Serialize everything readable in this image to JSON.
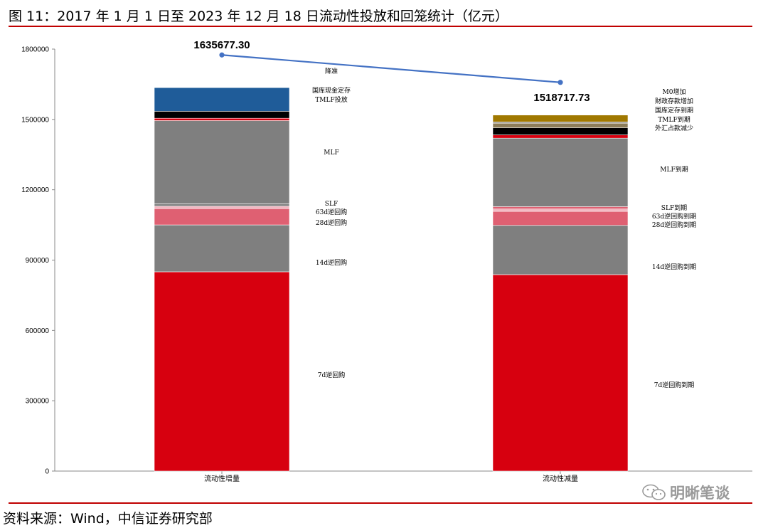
{
  "figure": {
    "title": "图 11：2017 年 1 月 1 日至 2023 年 12 月 18 日流动性投放和回笼统计（亿元）",
    "source": "资料来源：Wind，中信证券研究部",
    "watermark": "明晰笔谈"
  },
  "colors": {
    "rule": "#c00000",
    "red": "#d7000f",
    "gray": "#7f7f7f",
    "pink": "#df6072",
    "light_pink": "#f2b6c0",
    "black": "#000000",
    "blue": "#1f5c99",
    "gold": "#a07800",
    "olive": "#8c7d5a",
    "line": "#4472c4"
  },
  "chart_data": {
    "type": "bar",
    "stacked": true,
    "ylim": [
      0,
      1800000
    ],
    "yticks": [
      0,
      300000,
      600000,
      900000,
      1200000,
      1500000,
      1800000
    ],
    "ytick_labels": [
      "0",
      "300000",
      "600000",
      "900000",
      "1200000",
      "1500000",
      "1800000"
    ],
    "categories": [
      "流动性增量",
      "流动性减量"
    ],
    "grid": false,
    "bars": [
      {
        "category": "流动性增量",
        "total": 1635677.3,
        "total_label": "1635677.30",
        "segments": [
          {
            "label": "7d逆回购",
            "value": 850000,
            "color": "red"
          },
          {
            "label": "14d逆回购",
            "value": 200000,
            "color": "gray"
          },
          {
            "label": "28d逆回购",
            "value": 70000,
            "color": "pink"
          },
          {
            "label": "63d逆回购",
            "value": 10000,
            "color": "light_pink"
          },
          {
            "label": "SLF",
            "value": 10000,
            "color": "gray"
          },
          {
            "label": "MLF",
            "value": 355000,
            "color": "gray"
          },
          {
            "label": "降准",
            "value": 10000,
            "color": "red"
          },
          {
            "label": "TMLF投放",
            "value": 30000,
            "color": "black"
          },
          {
            "label": "国库现金定存",
            "value": 100677.3,
            "color": "blue"
          }
        ]
      },
      {
        "category": "流动性减量",
        "total": 1518717.73,
        "total_label": "1518717.73",
        "segments": [
          {
            "label": "7d逆回购到期",
            "value": 838000,
            "color": "red"
          },
          {
            "label": "14d逆回购到期",
            "value": 210000,
            "color": "gray"
          },
          {
            "label": "28d逆回购到期",
            "value": 60000,
            "color": "pink"
          },
          {
            "label": "63d逆回购到期",
            "value": 10000,
            "color": "light_pink"
          },
          {
            "label": "SLF到期",
            "value": 10000,
            "color": "pink"
          },
          {
            "label": "MLF到期",
            "value": 292000,
            "color": "gray"
          },
          {
            "label": "外汇占款减少",
            "value": 14000,
            "color": "red"
          },
          {
            "label": "TMLF到期",
            "value": 30000,
            "color": "black"
          },
          {
            "label": "国库定存到期",
            "value": 20000,
            "color": "olive"
          },
          {
            "label": "财政存款增加",
            "value": 5000,
            "color": "gray"
          },
          {
            "label": "M0增加",
            "value": 29717.73,
            "color": "gold"
          }
        ]
      }
    ],
    "total_line": {
      "color": "line",
      "points": [
        {
          "category": "流动性增量",
          "value": 1775000
        },
        {
          "category": "流动性减量",
          "value": 1658000
        }
      ]
    }
  }
}
